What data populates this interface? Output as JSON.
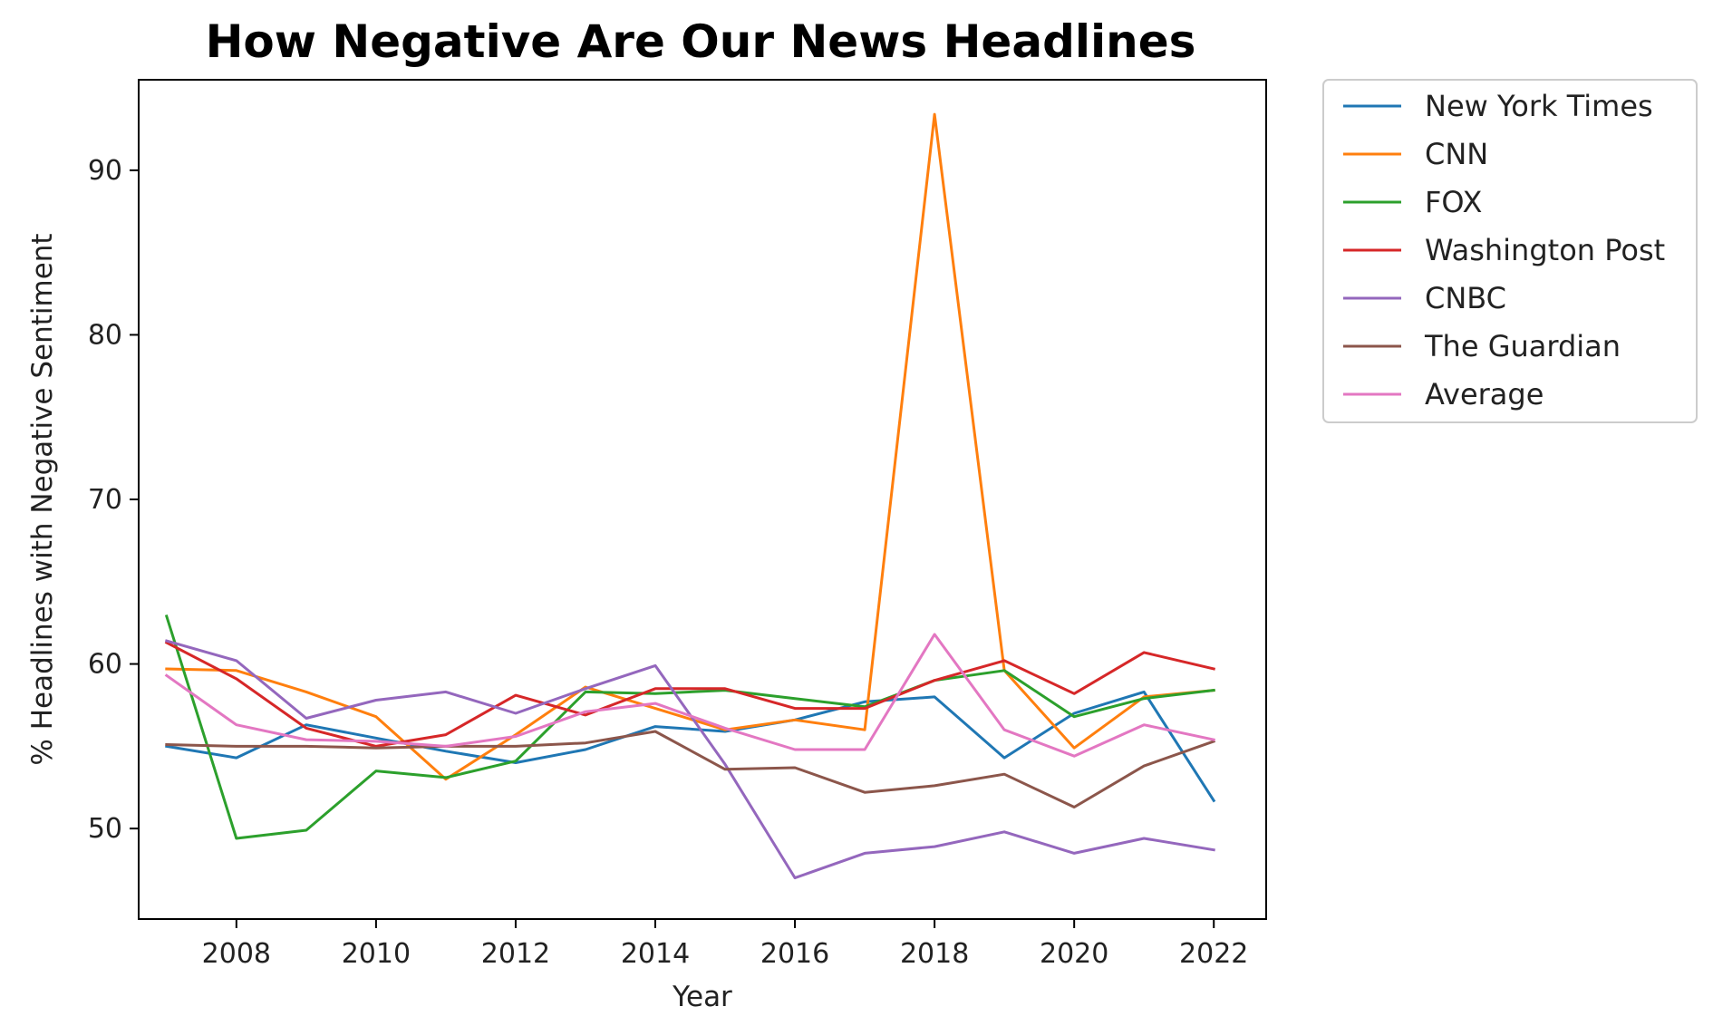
{
  "chart_data": {
    "type": "line",
    "title": "How Negative Are Our News Headlines",
    "xlabel": "Year",
    "ylabel": "% Headlines with Negative Sentiment",
    "xlim": [
      2006.6,
      2022.75
    ],
    "ylim": [
      44.5,
      95.5
    ],
    "xticks": [
      2008,
      2010,
      2012,
      2014,
      2016,
      2018,
      2020,
      2022
    ],
    "yticks": [
      50,
      60,
      70,
      80,
      90
    ],
    "grid": false,
    "legend_position": "outside-right-top",
    "x": [
      2007,
      2008,
      2009,
      2010,
      2011,
      2012,
      2013,
      2014,
      2015,
      2016,
      2017,
      2018,
      2019,
      2020,
      2021,
      2022
    ],
    "series": [
      {
        "name": "New York Times",
        "color": "#1f77b4",
        "values": [
          55.0,
          54.3,
          56.3,
          55.5,
          54.7,
          54.0,
          54.8,
          56.2,
          55.9,
          56.6,
          57.7,
          58.0,
          54.3,
          57.0,
          58.3,
          51.7
        ]
      },
      {
        "name": "CNN",
        "color": "#ff7f0e",
        "values": [
          59.7,
          59.6,
          58.3,
          56.8,
          53.0,
          55.7,
          58.6,
          57.3,
          56.0,
          56.6,
          56.0,
          93.4,
          59.6,
          54.9,
          58.0,
          58.4
        ]
      },
      {
        "name": "FOX",
        "color": "#2ca02c",
        "values": [
          62.9,
          49.4,
          49.9,
          53.5,
          53.1,
          54.1,
          58.3,
          58.2,
          58.4,
          57.9,
          57.4,
          59.0,
          59.6,
          56.8,
          57.9,
          58.4
        ]
      },
      {
        "name": "Washington Post",
        "color": "#d62728",
        "values": [
          61.3,
          59.1,
          56.1,
          55.0,
          55.7,
          58.1,
          56.9,
          58.5,
          58.5,
          57.3,
          57.3,
          59.0,
          60.2,
          58.2,
          60.7,
          59.7
        ]
      },
      {
        "name": "CNBC",
        "color": "#9467bd",
        "values": [
          61.4,
          60.2,
          56.7,
          57.8,
          58.3,
          57.0,
          58.5,
          59.9,
          53.9,
          47.0,
          48.5,
          48.9,
          49.8,
          48.5,
          49.4,
          48.7
        ]
      },
      {
        "name": "The Guardian",
        "color": "#8c564b",
        "values": [
          55.1,
          55.0,
          55.0,
          54.9,
          55.0,
          55.0,
          55.2,
          55.9,
          53.6,
          53.7,
          52.2,
          52.6,
          53.3,
          51.3,
          53.8,
          55.3
        ]
      },
      {
        "name": "Average",
        "color": "#e377c2",
        "values": [
          59.3,
          56.3,
          55.4,
          55.3,
          55.0,
          55.6,
          57.1,
          57.6,
          56.1,
          54.8,
          54.8,
          61.8,
          56.0,
          54.4,
          56.3,
          55.4
        ]
      }
    ]
  }
}
